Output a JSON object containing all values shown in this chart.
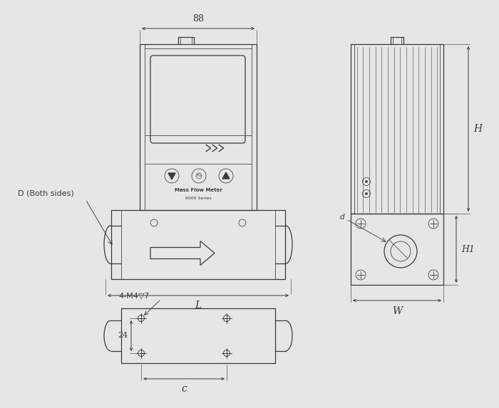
{
  "bg_color": "#e6e6e6",
  "line_color": "#3a3a3a",
  "dim_color": "#3a3a3a",
  "fig_width": 7.0,
  "fig_height": 5.73,
  "dim_88_label": "88",
  "dim_L_label": "L",
  "dim_H_label": "H",
  "dim_H1_label": "H1",
  "dim_W_label": "W",
  "dim_d_label": "d",
  "dim_c_label": "c",
  "dim_24_label": "24",
  "dim_4M4_label": "4-M4▽7",
  "label_D": "D (Both sides)",
  "text_mfm": "Mass Flow Meter",
  "text_series": "6000 Series"
}
